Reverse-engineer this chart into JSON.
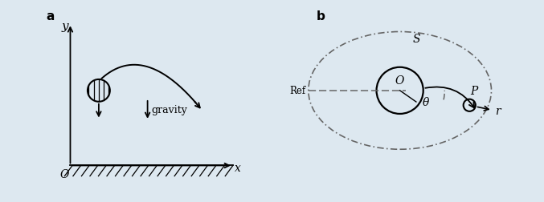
{
  "bg_color": "#dde8f0",
  "fig_width": 6.77,
  "fig_height": 2.53,
  "panel_a_label": "a",
  "panel_b_label": "b",
  "gravity_label": "gravity",
  "ref_label": "Ref",
  "s_label": "S",
  "o_label": "O",
  "p_label": "P",
  "theta_label": "θ",
  "r_label": "r",
  "x_label": "x",
  "y_label": "y",
  "origin_label": "O",
  "line_color": "#333333",
  "ellipse_color": "#555555"
}
